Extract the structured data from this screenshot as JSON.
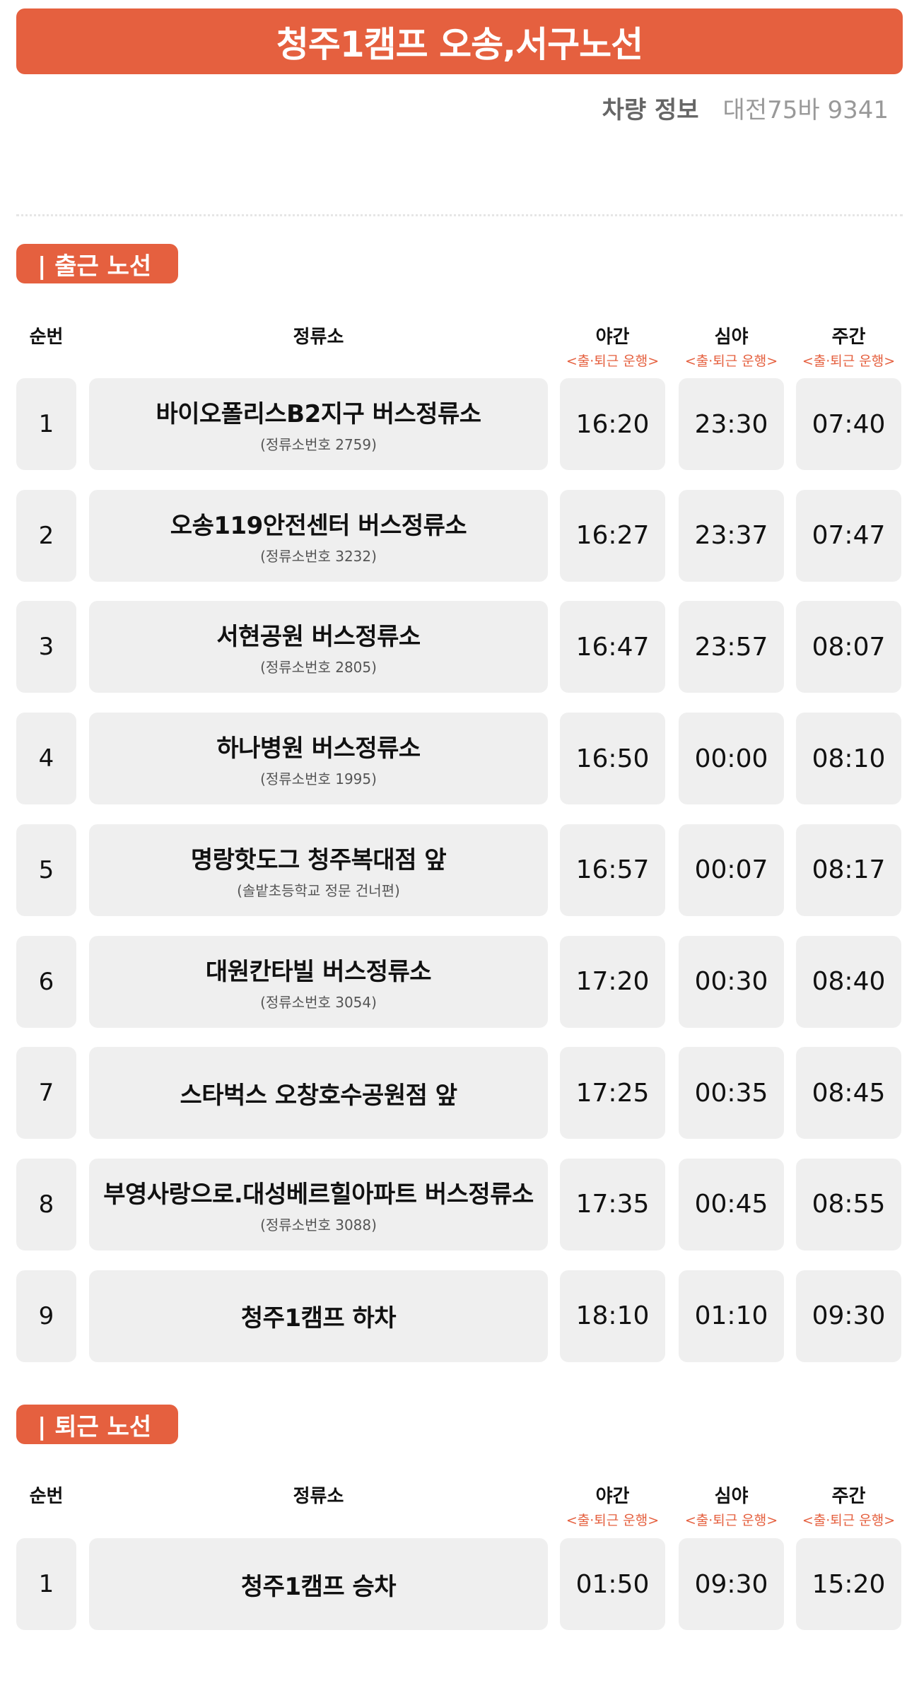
{
  "title": "청주1캠프 오송,서구노선",
  "vehicle": {
    "label": "차량 정보",
    "value": "대전75바 9341"
  },
  "columns": {
    "num": "순번",
    "stop": "정류소",
    "night": "야간",
    "late": "심야",
    "day": "주간",
    "sub": "<출·퇴근 운행>"
  },
  "sections": [
    {
      "badge": "| 출근 노선",
      "rows": [
        {
          "num": "1",
          "name": "바이오폴리스B2지구 버스정류소",
          "sub": "(정류소번호 2759)",
          "t": [
            "16:20",
            "23:30",
            "07:40"
          ]
        },
        {
          "num": "2",
          "name": "오송119안전센터 버스정류소",
          "sub": "(정류소번호 3232)",
          "t": [
            "16:27",
            "23:37",
            "07:47"
          ]
        },
        {
          "num": "3",
          "name": "서현공원 버스정류소",
          "sub": "(정류소번호 2805)",
          "t": [
            "16:47",
            "23:57",
            "08:07"
          ]
        },
        {
          "num": "4",
          "name": "하나병원 버스정류소",
          "sub": "(정류소번호 1995)",
          "t": [
            "16:50",
            "00:00",
            "08:10"
          ]
        },
        {
          "num": "5",
          "name": "명랑핫도그 청주복대점 앞",
          "sub": "(솔밭초등학교 정문 건너편)",
          "t": [
            "16:57",
            "00:07",
            "08:17"
          ]
        },
        {
          "num": "6",
          "name": "대원칸타빌 버스정류소",
          "sub": "(정류소번호 3054)",
          "t": [
            "17:20",
            "00:30",
            "08:40"
          ]
        },
        {
          "num": "7",
          "name": "스타벅스 오창호수공원점 앞",
          "sub": "",
          "t": [
            "17:25",
            "00:35",
            "08:45"
          ]
        },
        {
          "num": "8",
          "name": "부영사랑으로.대성베르힐아파트 버스정류소",
          "sub": "(정류소번호 3088)",
          "t": [
            "17:35",
            "00:45",
            "08:55"
          ]
        },
        {
          "num": "9",
          "name": "청주1캠프 하차",
          "sub": "",
          "t": [
            "18:10",
            "01:10",
            "09:30"
          ]
        }
      ]
    },
    {
      "badge": "| 퇴근 노선",
      "rows": [
        {
          "num": "1",
          "name": "청주1캠프 승차",
          "sub": "",
          "t": [
            "01:50",
            "09:30",
            "15:20"
          ]
        }
      ]
    }
  ],
  "colors": {
    "accent": "#e5603f",
    "cell": "#efefef"
  }
}
